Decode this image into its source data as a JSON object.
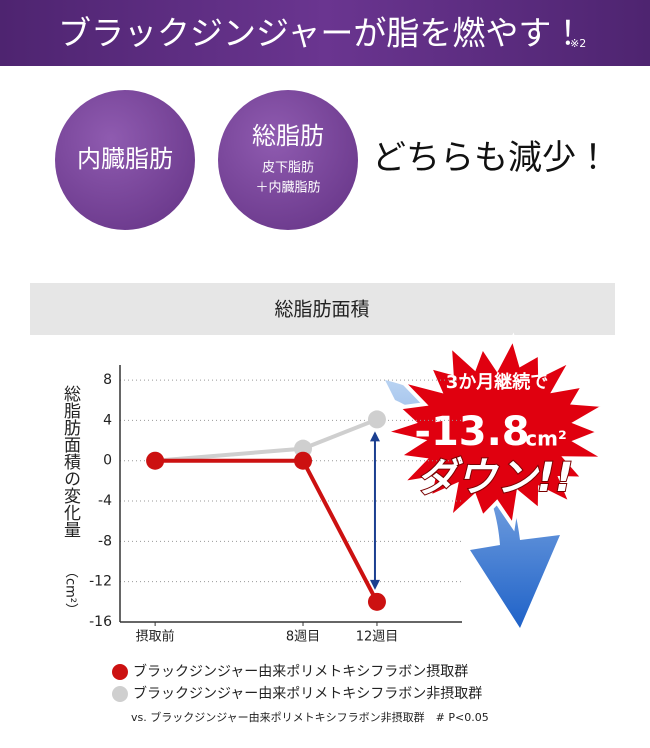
{
  "header": {
    "title": "ブラックジンジャーが脂を燃やす！",
    "note": "※2"
  },
  "badges": [
    {
      "title": "内臓脂肪"
    },
    {
      "title": "総脂肪",
      "lines": [
        "皮下脂肪",
        "＋内臓脂肪"
      ]
    }
  ],
  "headline": "どちらも減少！",
  "chart_data": {
    "type": "line",
    "title": "総脂肪面積",
    "ylabel": "総脂肪面積の変化量",
    "yunit": "（cm²）",
    "x": [
      0,
      8,
      12
    ],
    "xticks": [
      {
        "value": 0,
        "label": "摂取前"
      },
      {
        "value": 8,
        "label": "8週目"
      },
      {
        "value": 12,
        "label": "12週目"
      }
    ],
    "xlim": [
      -1.9,
      16.6
    ],
    "ylim": [
      -16,
      9.5
    ],
    "yticks": [
      8,
      4,
      0,
      -4,
      -8,
      -12,
      -16
    ],
    "grid": true,
    "series": [
      {
        "name": "ブラックジンジャー由来ポリメトキシフラボン摂取群",
        "color": "#cc1111",
        "values": [
          0,
          0,
          -14
        ]
      },
      {
        "name": "ブラックジンジャー由来ポリメトキシフラボン非摂取群",
        "color": "#cfcfcf",
        "values": [
          0,
          1.2,
          4.1
        ]
      }
    ],
    "annotations": {
      "lead": "3か月継続で",
      "value": "-13.8",
      "unit": "cm²",
      "result": "ダウン!!"
    },
    "footnote": "vs. ブラックジンジャー由来ポリメトキシフラボン非摂取群　# P<0.05"
  }
}
